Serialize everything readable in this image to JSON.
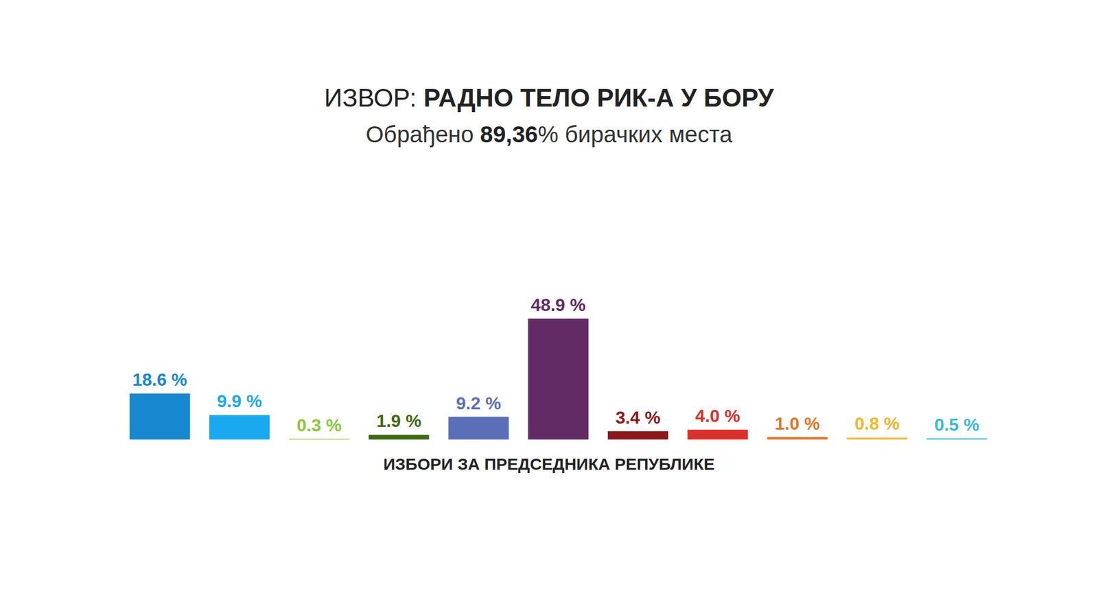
{
  "chart_data": {
    "type": "bar",
    "title": "ИЗВОР: РАДНО ТЕЛО РИК-А У БОРУ",
    "subtitle": "Обрађено 89,36% бирачких места",
    "x_label": "ИЗБОРИ ЗА ПРЕДСЕДНИКА РЕПУБЛИКЕ",
    "categories": [
      null,
      null,
      null,
      null,
      null,
      null,
      null,
      null,
      null,
      null,
      null
    ],
    "values": [
      18.6,
      9.9,
      0.3,
      1.9,
      9.2,
      48.9,
      3.4,
      4.0,
      1.0,
      0.8,
      0.5
    ],
    "value_labels": [
      "18.6 %",
      "9.9 %",
      "0.3 %",
      "1.9 %",
      "9.2 %",
      "48.9 %",
      "3.4 %",
      "4.0 %",
      "1.0 %",
      "0.8 %",
      "0.5 %"
    ],
    "colors": [
      "#1787cf",
      "#1aa9ee",
      "#8cc63f",
      "#3d6b12",
      "#5b6fb8",
      "#632b66",
      "#8b1a1a",
      "#d9312b",
      "#e0762a",
      "#f2b630",
      "#3bb8d8"
    ],
    "ylim": [
      0,
      50
    ],
    "data_labels": true,
    "tick_labels": false,
    "grid": false
  }
}
